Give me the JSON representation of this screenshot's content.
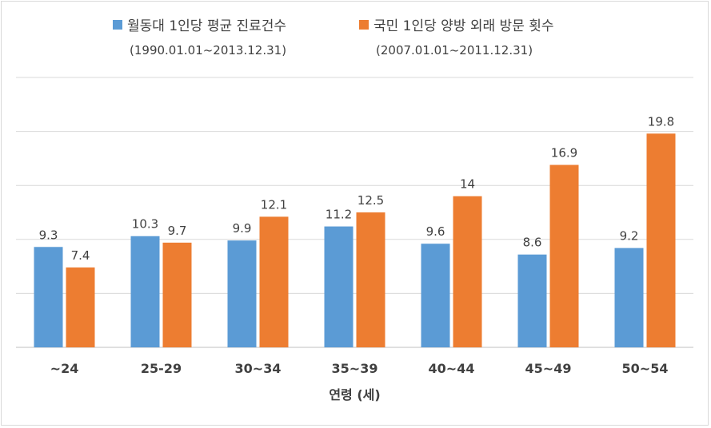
{
  "chart_data": {
    "type": "bar",
    "categories": [
      "~24",
      "25-29",
      "30~34",
      "35~39",
      "40~44",
      "45~49",
      "50~54"
    ],
    "series": [
      {
        "name": "월동대 1인당 평균 진료건수",
        "period": "(1990.01.01~2013.12.31)",
        "color": "#5b9bd5",
        "values": [
          9.3,
          10.3,
          9.9,
          11.2,
          9.6,
          8.6,
          9.2
        ]
      },
      {
        "name": "국민 1인당 양방 외래 방문 횟수",
        "period": "(2007.01.01~2011.12.31)",
        "color": "#ed7d31",
        "values": [
          7.4,
          9.7,
          12.1,
          12.5,
          14,
          16.9,
          19.8
        ]
      }
    ],
    "xlabel": "연령 (세)",
    "ylabel": "",
    "ylim": [
      0,
      25
    ],
    "grid": true,
    "legend_position": "top"
  }
}
